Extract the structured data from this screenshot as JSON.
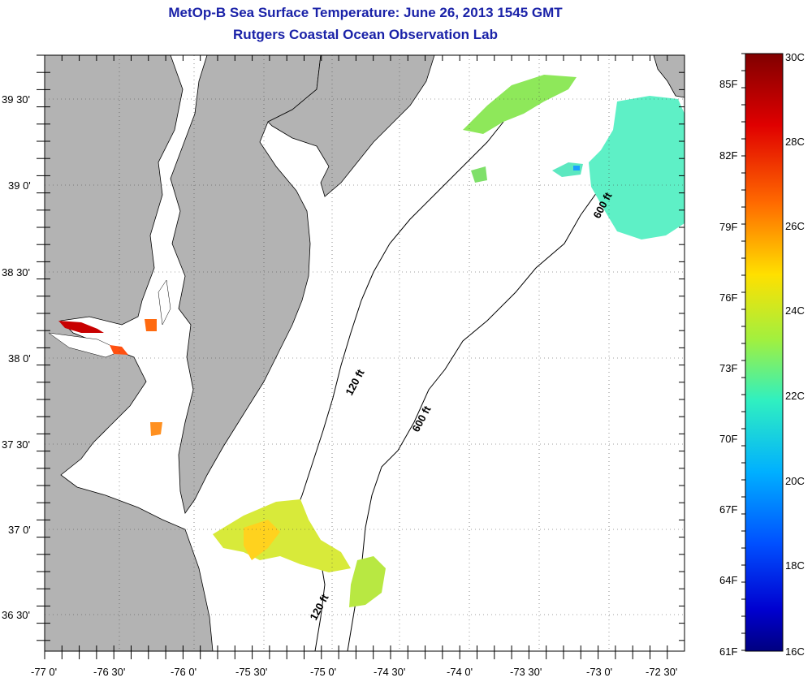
{
  "title": "MetOp-B Sea Surface Temperature:  June 26, 2013 1545 GMT",
  "subtitle": "Rutgers Coastal Ocean Observation Lab",
  "lat_labels": [
    "39 30'",
    "39 0'",
    "38 30'",
    "38 0'",
    "37 30'",
    "37 0'",
    "36 30'"
  ],
  "lon_labels": [
    "-77 0'",
    "-76 30'",
    "-76 0'",
    "-75 30'",
    "-75 0'",
    "-74 30'",
    "-74 0'",
    "-73 30'",
    "-73 0'",
    "-72 30'"
  ],
  "contour_labels": [
    "120 ft",
    "600 ft",
    "600 ft",
    "120 ft"
  ],
  "colorbar": {
    "celsius_labels": [
      "30C",
      "28C",
      "26C",
      "24C",
      "22C",
      "20C",
      "18C",
      "16C"
    ],
    "fahrenheit_labels": [
      "85F",
      "82F",
      "79F",
      "76F",
      "73F",
      "70F",
      "67F",
      "64F",
      "61F"
    ]
  },
  "colors": {
    "land": "#b3b3b3",
    "water": "#ffffff",
    "title": "#1a22a8"
  }
}
